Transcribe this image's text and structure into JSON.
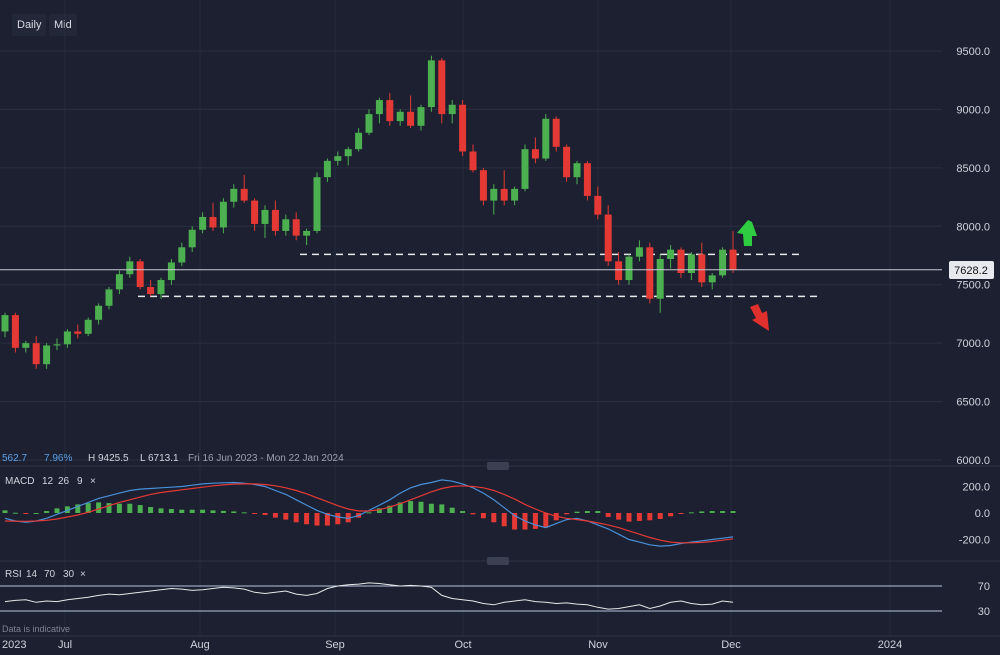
{
  "toolbar": {
    "interval": "Daily",
    "price_type": "Mid"
  },
  "info_bar": {
    "change": "562.7",
    "change_pct": "7.96%",
    "high": "H 9425.5",
    "low": "L 6713.1",
    "range": "Fri 16 Jun 2023 - Mon 22 Jan 2024"
  },
  "price_label": "7628.2",
  "macd_header": {
    "name": "MACD",
    "fast": "12",
    "slow": "26",
    "signal": "9"
  },
  "rsi_header": {
    "name": "RSI",
    "p1": "14",
    "p2": "70",
    "p3": "30"
  },
  "footer_note": "Data is indicative",
  "colors": {
    "up": "#4caf50",
    "down": "#e53935",
    "macd_line": "#4a90d9",
    "signal_line": "#e53935",
    "rsi_line": "#e8e8e8",
    "arrow_up": "#2ecc40",
    "arrow_down": "#e0302e"
  },
  "chart_data": {
    "type": "candlestick",
    "price_axis": {
      "ticks": [
        "9500.0",
        "9000.0",
        "8500.0",
        "8000.0",
        "7500.0",
        "7000.0",
        "6500.0",
        "6000.0"
      ],
      "range": [
        6000,
        9700
      ]
    },
    "time_axis": [
      "2023",
      "Jul",
      "Aug",
      "Sep",
      "Oct",
      "Nov",
      "Dec",
      "2024"
    ],
    "current_price": 7628.2,
    "support_levels": [
      7760,
      7400
    ],
    "candles": [
      [
        7100,
        7260,
        7050,
        7240
      ],
      [
        7240,
        7260,
        6920,
        6960
      ],
      [
        6960,
        7020,
        6920,
        7000
      ],
      [
        7000,
        7060,
        6780,
        6820
      ],
      [
        6820,
        7000,
        6780,
        6980
      ],
      [
        6980,
        7040,
        6940,
        6990
      ],
      [
        6990,
        7120,
        6960,
        7100
      ],
      [
        7100,
        7160,
        7040,
        7080
      ],
      [
        7080,
        7220,
        7060,
        7200
      ],
      [
        7200,
        7340,
        7160,
        7320
      ],
      [
        7320,
        7480,
        7290,
        7460
      ],
      [
        7460,
        7620,
        7420,
        7590
      ],
      [
        7590,
        7740,
        7560,
        7700
      ],
      [
        7700,
        7720,
        7460,
        7480
      ],
      [
        7480,
        7540,
        7400,
        7420
      ],
      [
        7420,
        7560,
        7380,
        7540
      ],
      [
        7540,
        7720,
        7500,
        7690
      ],
      [
        7690,
        7860,
        7660,
        7820
      ],
      [
        7820,
        8000,
        7780,
        7970
      ],
      [
        7970,
        8120,
        7940,
        8080
      ],
      [
        8080,
        8200,
        7960,
        7990
      ],
      [
        7990,
        8240,
        7940,
        8210
      ],
      [
        8210,
        8360,
        8160,
        8320
      ],
      [
        8320,
        8440,
        8200,
        8220
      ],
      [
        8220,
        8240,
        7960,
        8020
      ],
      [
        8020,
        8180,
        7900,
        8140
      ],
      [
        8140,
        8220,
        7920,
        7960
      ],
      [
        7960,
        8100,
        7920,
        8060
      ],
      [
        8060,
        8120,
        7880,
        7920
      ],
      [
        7920,
        7980,
        7840,
        7960
      ],
      [
        7960,
        8460,
        7940,
        8420
      ],
      [
        8420,
        8580,
        8380,
        8560
      ],
      [
        8560,
        8640,
        8520,
        8600
      ],
      [
        8600,
        8680,
        8520,
        8660
      ],
      [
        8660,
        8840,
        8640,
        8800
      ],
      [
        8800,
        9000,
        8780,
        8960
      ],
      [
        8960,
        9100,
        8880,
        9080
      ],
      [
        9080,
        9140,
        8860,
        8900
      ],
      [
        8900,
        9000,
        8860,
        8980
      ],
      [
        8980,
        9120,
        8840,
        8860
      ],
      [
        8860,
        9040,
        8820,
        9020
      ],
      [
        9020,
        9460,
        8980,
        9420
      ],
      [
        9420,
        9440,
        8880,
        8960
      ],
      [
        8960,
        9080,
        8880,
        9040
      ],
      [
        9040,
        9080,
        8600,
        8640
      ],
      [
        8640,
        8700,
        8460,
        8480
      ],
      [
        8480,
        8500,
        8180,
        8220
      ],
      [
        8220,
        8360,
        8100,
        8320
      ],
      [
        8320,
        8480,
        8180,
        8220
      ],
      [
        8220,
        8340,
        8180,
        8320
      ],
      [
        8320,
        8700,
        8300,
        8660
      ],
      [
        8660,
        8760,
        8540,
        8580
      ],
      [
        8580,
        8960,
        8560,
        8920
      ],
      [
        8920,
        8940,
        8640,
        8680
      ],
      [
        8680,
        8700,
        8380,
        8420
      ],
      [
        8420,
        8560,
        8360,
        8540
      ],
      [
        8540,
        8560,
        8220,
        8260
      ],
      [
        8260,
        8340,
        8060,
        8100
      ],
      [
        8100,
        8180,
        7660,
        7700
      ],
      [
        7700,
        7780,
        7500,
        7540
      ],
      [
        7540,
        7760,
        7500,
        7740
      ],
      [
        7740,
        7880,
        7700,
        7820
      ],
      [
        7820,
        7860,
        7340,
        7380
      ],
      [
        7380,
        7760,
        7260,
        7720
      ],
      [
        7720,
        7840,
        7640,
        7800
      ],
      [
        7800,
        7820,
        7560,
        7600
      ],
      [
        7600,
        7780,
        7540,
        7760
      ],
      [
        7760,
        7860,
        7480,
        7520
      ],
      [
        7520,
        7600,
        7460,
        7580
      ],
      [
        7580,
        7820,
        7560,
        7800
      ],
      [
        7800,
        7960,
        7600,
        7628
      ]
    ],
    "macd_axis": {
      "ticks": [
        "200.0",
        "0.0",
        "-200.0"
      ],
      "range": [
        -280,
        280
      ]
    },
    "macd": [
      -40,
      -60,
      -70,
      -60,
      -40,
      -10,
      20,
      50,
      80,
      110,
      130,
      150,
      170,
      180,
      185,
      190,
      195,
      200,
      210,
      220,
      225,
      228,
      230,
      225,
      215,
      200,
      170,
      140,
      100,
      60,
      20,
      -10,
      -30,
      -40,
      -20,
      20,
      60,
      100,
      150,
      190,
      215,
      230,
      250,
      240,
      220,
      190,
      150,
      100,
      40,
      -20,
      -60,
      -90,
      -110,
      -80,
      -50,
      -40,
      -60,
      -90,
      -120,
      -160,
      -200,
      -220,
      -240,
      -250,
      -245,
      -230,
      -220,
      -210,
      -200,
      -190,
      -180
    ],
    "signal": [
      -60,
      -62,
      -63,
      -60,
      -55,
      -45,
      -30,
      -15,
      5,
      30,
      55,
      80,
      100,
      120,
      140,
      155,
      165,
      175,
      185,
      195,
      205,
      212,
      218,
      220,
      220,
      215,
      205,
      190,
      170,
      145,
      115,
      85,
      55,
      30,
      15,
      15,
      25,
      45,
      70,
      100,
      130,
      160,
      185,
      200,
      205,
      200,
      190,
      170,
      140,
      105,
      65,
      30,
      0,
      -25,
      -40,
      -50,
      -60,
      -75,
      -90,
      -110,
      -135,
      -160,
      -185,
      -205,
      -220,
      -225,
      -225,
      -222,
      -215,
      -205,
      -195
    ],
    "rsi_axis": {
      "ticks": [
        "70",
        "30"
      ]
    },
    "rsi": [
      45,
      47,
      48,
      44,
      46,
      45,
      48,
      50,
      52,
      55,
      57,
      56,
      58,
      60,
      62,
      64,
      66,
      65,
      63,
      64,
      66,
      68,
      67,
      65,
      60,
      58,
      60,
      62,
      57,
      55,
      58,
      66,
      70,
      72,
      73,
      75,
      74,
      72,
      70,
      71,
      70,
      68,
      55,
      50,
      48,
      46,
      42,
      40,
      44,
      46,
      48,
      45,
      44,
      42,
      43,
      41,
      40,
      36,
      33,
      34,
      37,
      40,
      34,
      38,
      44,
      46,
      42,
      40,
      41,
      46,
      44
    ],
    "histogram": [
      20,
      2,
      -7,
      0,
      15,
      35,
      50,
      65,
      75,
      80,
      75,
      70,
      70,
      60,
      45,
      35,
      30,
      25,
      25,
      25,
      20,
      16,
      12,
      5,
      -5,
      -15,
      -35,
      -50,
      -70,
      -85,
      -95,
      -95,
      -85,
      -70,
      -35,
      5,
      35,
      55,
      80,
      90,
      85,
      70,
      65,
      40,
      15,
      -10,
      -40,
      -70,
      -100,
      -125,
      -125,
      -120,
      -110,
      -55,
      -10,
      10,
      15,
      15,
      -30,
      -50,
      -65,
      -60,
      -55,
      -45,
      -25,
      -5,
      5,
      12,
      15,
      15,
      15
    ]
  }
}
